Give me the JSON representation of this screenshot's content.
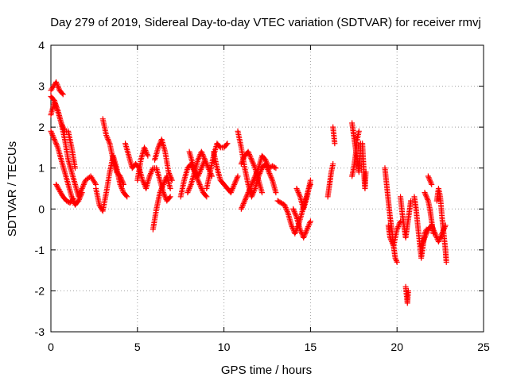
{
  "chart_data": {
    "type": "scatter",
    "title": "Day 279 of 2019, Sidereal Day-to-day VTEC variation (SDTVAR) for receiver rmvj",
    "xlabel": "GPS time / hours",
    "ylabel": "SDTVAR / TECUs",
    "xlim": [
      0,
      25
    ],
    "ylim": [
      -3,
      4
    ],
    "x_ticks": [
      "0",
      "5",
      "10",
      "15",
      "20",
      "25"
    ],
    "y_ticks": [
      "4",
      "3",
      "2",
      "1",
      "0",
      "-1",
      "-2",
      "-3"
    ],
    "grid": true,
    "marker": "+",
    "series": [
      {
        "name": "SDTVAR",
        "color": "#ff0000",
        "segments": [
          [
            [
              0.0,
              2.3
            ],
            [
              0.2,
              2.6
            ],
            [
              0.4,
              2.4
            ],
            [
              0.6,
              2.1
            ],
            [
              0.8,
              1.7
            ],
            [
              1.0,
              1.2
            ],
            [
              1.2,
              0.9
            ],
            [
              1.4,
              0.6
            ],
            [
              1.6,
              0.3
            ],
            [
              1.8,
              0.5
            ],
            [
              2.0,
              0.7
            ],
            [
              2.3,
              0.8
            ],
            [
              2.6,
              0.6
            ]
          ],
          [
            [
              0.0,
              1.9
            ],
            [
              0.2,
              1.7
            ],
            [
              0.4,
              1.5
            ],
            [
              0.6,
              1.2
            ],
            [
              0.8,
              0.9
            ],
            [
              1.0,
              0.6
            ],
            [
              1.2,
              0.3
            ],
            [
              1.4,
              0.1
            ],
            [
              1.6,
              0.2
            ],
            [
              1.8,
              0.4
            ]
          ],
          [
            [
              0.0,
              2.9
            ],
            [
              0.3,
              3.1
            ],
            [
              0.5,
              2.9
            ],
            [
              0.7,
              2.8
            ]
          ],
          [
            [
              0.0,
              2.75
            ],
            [
              0.2,
              2.65
            ],
            [
              0.4,
              2.4
            ],
            [
              0.6,
              2.1
            ],
            [
              0.8,
              1.9
            ],
            [
              1.0,
              1.9
            ],
            [
              1.2,
              1.5
            ],
            [
              1.4,
              1.0
            ]
          ],
          [
            [
              0.3,
              0.6
            ],
            [
              0.5,
              0.45
            ],
            [
              0.7,
              0.3
            ],
            [
              0.9,
              0.2
            ],
            [
              1.1,
              0.15
            ],
            [
              1.3,
              0.25
            ]
          ],
          [
            [
              2.6,
              0.5
            ],
            [
              2.8,
              0.1
            ],
            [
              3.0,
              -0.05
            ],
            [
              3.2,
              0.4
            ],
            [
              3.4,
              0.9
            ],
            [
              3.6,
              1.3
            ],
            [
              3.8,
              1.0
            ],
            [
              4.0,
              0.6
            ],
            [
              4.2,
              0.4
            ],
            [
              4.4,
              0.3
            ]
          ],
          [
            [
              3.0,
              2.2
            ],
            [
              3.2,
              1.8
            ],
            [
              3.4,
              1.6
            ],
            [
              3.6,
              1.2
            ],
            [
              3.8,
              0.9
            ],
            [
              4.0,
              0.8
            ],
            [
              4.2,
              0.6
            ]
          ],
          [
            [
              4.3,
              1.6
            ],
            [
              4.5,
              1.3
            ],
            [
              4.7,
              1.0
            ],
            [
              4.9,
              1.1
            ],
            [
              5.1,
              1.0
            ],
            [
              5.3,
              0.7
            ],
            [
              5.5,
              0.5
            ],
            [
              5.7,
              0.8
            ],
            [
              5.9,
              1.0
            ],
            [
              6.1,
              1.0
            ],
            [
              6.3,
              0.7
            ],
            [
              6.5,
              0.4
            ],
            [
              6.7,
              0.2
            ],
            [
              6.9,
              0.3
            ]
          ],
          [
            [
              5.0,
              0.7
            ],
            [
              5.2,
              1.2
            ],
            [
              5.4,
              1.5
            ],
            [
              5.6,
              1.3
            ]
          ],
          [
            [
              6.0,
              1.2
            ],
            [
              6.2,
              1.5
            ],
            [
              6.4,
              1.7
            ],
            [
              6.6,
              1.4
            ],
            [
              6.8,
              0.9
            ],
            [
              7.0,
              0.7
            ]
          ],
          [
            [
              5.9,
              -0.5
            ],
            [
              6.1,
              0.0
            ],
            [
              6.3,
              0.4
            ],
            [
              6.5,
              0.6
            ],
            [
              6.7,
              0.8
            ],
            [
              6.9,
              0.5
            ]
          ],
          [
            [
              7.5,
              0.3
            ],
            [
              7.7,
              0.7
            ],
            [
              7.9,
              1.0
            ],
            [
              8.1,
              1.1
            ],
            [
              8.3,
              0.9
            ],
            [
              8.5,
              0.8
            ],
            [
              8.7,
              1.0
            ],
            [
              8.9,
              1.2
            ],
            [
              9.1,
              1.0
            ],
            [
              9.3,
              0.8
            ]
          ],
          [
            [
              8.0,
              1.4
            ],
            [
              8.2,
              1.1
            ],
            [
              8.4,
              0.8
            ],
            [
              8.6,
              0.6
            ],
            [
              8.8,
              0.4
            ],
            [
              9.0,
              0.3
            ]
          ],
          [
            [
              7.9,
              0.4
            ],
            [
              8.1,
              0.6
            ],
            [
              8.3,
              0.9
            ],
            [
              8.5,
              1.2
            ],
            [
              8.7,
              1.4
            ],
            [
              8.9,
              1.2
            ]
          ],
          [
            [
              9.4,
              1.4
            ],
            [
              9.6,
              1.0
            ],
            [
              9.8,
              0.7
            ],
            [
              10.0,
              0.6
            ],
            [
              10.2,
              0.5
            ],
            [
              10.4,
              0.4
            ],
            [
              10.6,
              0.6
            ],
            [
              10.8,
              0.8
            ]
          ],
          [
            [
              9.0,
              0.5
            ],
            [
              9.2,
              0.9
            ],
            [
              9.4,
              1.3
            ],
            [
              9.6,
              1.6
            ],
            [
              9.8,
              1.5
            ],
            [
              10.0,
              1.5
            ],
            [
              10.2,
              1.6
            ]
          ],
          [
            [
              10.8,
              1.9
            ],
            [
              11.0,
              1.5
            ],
            [
              11.2,
              1.0
            ],
            [
              11.4,
              0.6
            ],
            [
              11.6,
              0.3
            ],
            [
              11.8,
              0.5
            ],
            [
              12.0,
              0.8
            ],
            [
              12.2,
              1.0
            ],
            [
              12.4,
              1.1
            ],
            [
              12.6,
              0.9
            ],
            [
              12.8,
              0.7
            ],
            [
              13.0,
              0.4
            ]
          ],
          [
            [
              11.0,
              0.0
            ],
            [
              11.2,
              0.2
            ],
            [
              11.4,
              0.4
            ],
            [
              11.6,
              0.6
            ],
            [
              11.8,
              0.8
            ],
            [
              12.0,
              1.0
            ],
            [
              12.2,
              1.3
            ],
            [
              12.4,
              1.2
            ],
            [
              12.6,
              1.0
            ],
            [
              12.8,
              1.05
            ],
            [
              13.0,
              1.0
            ]
          ],
          [
            [
              11.0,
              1.1
            ],
            [
              11.2,
              1.3
            ],
            [
              11.4,
              1.4
            ],
            [
              11.6,
              1.2
            ],
            [
              11.8,
              1.0
            ],
            [
              12.0,
              0.7
            ],
            [
              12.2,
              0.4
            ]
          ],
          [
            [
              13.1,
              0.2
            ],
            [
              13.3,
              0.15
            ],
            [
              13.5,
              0.1
            ],
            [
              13.7,
              -0.1
            ],
            [
              13.9,
              -0.4
            ],
            [
              14.1,
              -0.6
            ],
            [
              14.3,
              -0.4
            ],
            [
              14.5,
              -0.1
            ],
            [
              14.7,
              0.2
            ],
            [
              14.9,
              0.5
            ],
            [
              15.0,
              0.6
            ]
          ],
          [
            [
              14.0,
              0.0
            ],
            [
              14.2,
              -0.2
            ],
            [
              14.4,
              -0.5
            ],
            [
              14.6,
              -0.7
            ],
            [
              14.8,
              -0.5
            ],
            [
              15.0,
              -0.3
            ]
          ],
          [
            [
              14.2,
              0.5
            ],
            [
              14.4,
              0.3
            ],
            [
              14.6,
              0.0
            ],
            [
              14.8,
              0.3
            ],
            [
              15.0,
              0.7
            ]
          ],
          [
            [
              16.0,
              0.3
            ],
            [
              16.1,
              0.6
            ],
            [
              16.2,
              0.9
            ],
            [
              16.3,
              1.1
            ]
          ],
          [
            [
              16.3,
              2.0
            ],
            [
              16.35,
              1.8
            ],
            [
              16.4,
              1.6
            ]
          ],
          [
            [
              17.4,
              2.1
            ],
            [
              17.5,
              1.8
            ],
            [
              17.6,
              1.5
            ],
            [
              17.7,
              1.2
            ],
            [
              17.8,
              0.9
            ],
            [
              17.9,
              1.6
            ]
          ],
          [
            [
              17.4,
              0.8
            ],
            [
              17.5,
              1.0
            ],
            [
              17.6,
              1.3
            ],
            [
              17.7,
              1.7
            ],
            [
              17.8,
              1.9
            ]
          ],
          [
            [
              18.0,
              1.6
            ],
            [
              18.05,
              1.2
            ],
            [
              18.1,
              0.8
            ],
            [
              18.15,
              0.5
            ],
            [
              18.2,
              0.9
            ]
          ],
          [
            [
              19.3,
              1.0
            ],
            [
              19.4,
              0.6
            ],
            [
              19.5,
              0.2
            ],
            [
              19.6,
              -0.2
            ],
            [
              19.7,
              -0.5
            ],
            [
              19.8,
              -0.9
            ],
            [
              19.9,
              -1.2
            ],
            [
              20.0,
              -1.3
            ]
          ],
          [
            [
              19.5,
              -0.4
            ],
            [
              19.6,
              -0.7
            ],
            [
              19.8,
              -0.9
            ],
            [
              20.0,
              -0.5
            ],
            [
              20.2,
              -0.3
            ]
          ],
          [
            [
              20.2,
              0.3
            ],
            [
              20.3,
              -0.1
            ],
            [
              20.4,
              -0.4
            ],
            [
              20.5,
              -0.7
            ],
            [
              20.6,
              -0.4
            ],
            [
              20.7,
              -0.1
            ],
            [
              20.8,
              0.2
            ]
          ],
          [
            [
              20.5,
              -1.9
            ],
            [
              20.55,
              -2.1
            ],
            [
              20.6,
              -2.3
            ],
            [
              20.65,
              -2.0
            ]
          ],
          [
            [
              21.0,
              0.3
            ],
            [
              21.1,
              0.0
            ],
            [
              21.2,
              -0.4
            ],
            [
              21.3,
              -0.8
            ],
            [
              21.4,
              -1.2
            ],
            [
              21.5,
              -0.9
            ],
            [
              21.6,
              -0.6
            ],
            [
              21.7,
              -0.5
            ]
          ],
          [
            [
              21.6,
              0.4
            ],
            [
              21.7,
              0.3
            ],
            [
              21.8,
              0.2
            ],
            [
              21.9,
              0.0
            ],
            [
              22.0,
              -0.3
            ],
            [
              22.1,
              -0.6
            ]
          ],
          [
            [
              21.8,
              0.8
            ],
            [
              21.9,
              0.7
            ],
            [
              22.0,
              0.6
            ]
          ],
          [
            [
              22.3,
              0.2
            ],
            [
              22.4,
              0.5
            ],
            [
              22.5,
              0.3
            ],
            [
              22.6,
              -0.2
            ],
            [
              22.7,
              -0.6
            ],
            [
              22.8,
              -1.0
            ],
            [
              22.85,
              -1.3
            ]
          ],
          [
            [
              21.4,
              -0.9
            ],
            [
              21.6,
              -0.7
            ],
            [
              21.8,
              -0.5
            ],
            [
              22.0,
              -0.4
            ],
            [
              22.2,
              -0.6
            ],
            [
              22.4,
              -0.8
            ],
            [
              22.6,
              -0.6
            ],
            [
              22.8,
              -0.4
            ]
          ]
        ]
      }
    ]
  }
}
